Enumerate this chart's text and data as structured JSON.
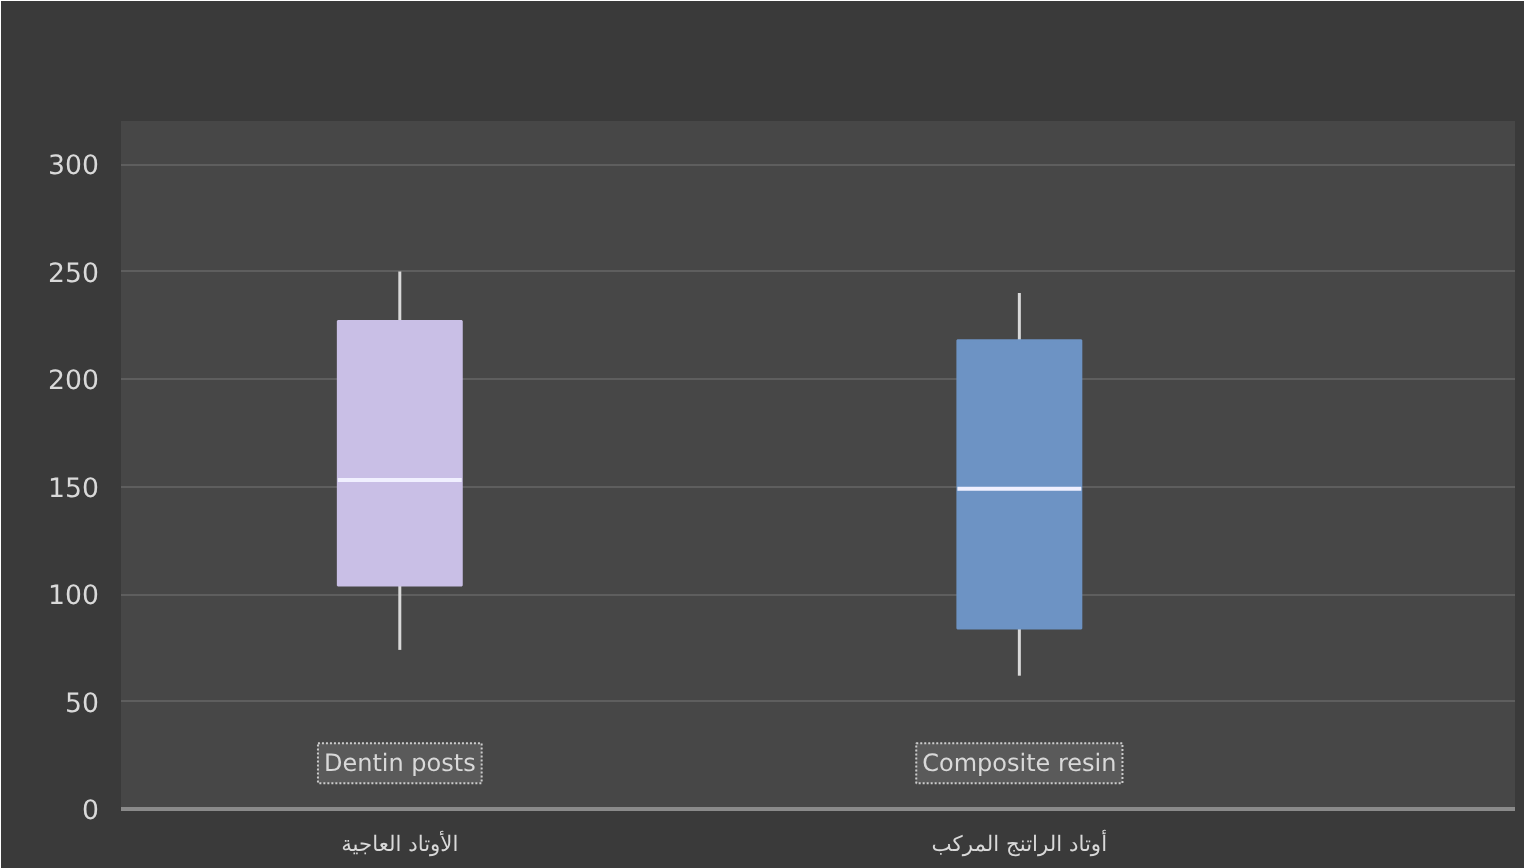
{
  "chart_data": {
    "type": "box",
    "categories": [
      "الأوتاد العاجية",
      "أوتاد الراتنج المركب"
    ],
    "boxes": [
      {
        "low": 74,
        "q1": 104,
        "median": 153,
        "q3": 227,
        "high": 250
      },
      {
        "low": 62,
        "q1": 84,
        "median": 149,
        "q3": 218,
        "high": 240
      }
    ],
    "colors": [
      "#c9bfe6",
      "#6d93c4"
    ],
    "ylim": [
      0,
      320
    ],
    "yticks": [
      0,
      50,
      100,
      150,
      200,
      250,
      300
    ],
    "grid": "y",
    "annotations": [
      "Dentin posts",
      "Composite resin"
    ]
  }
}
